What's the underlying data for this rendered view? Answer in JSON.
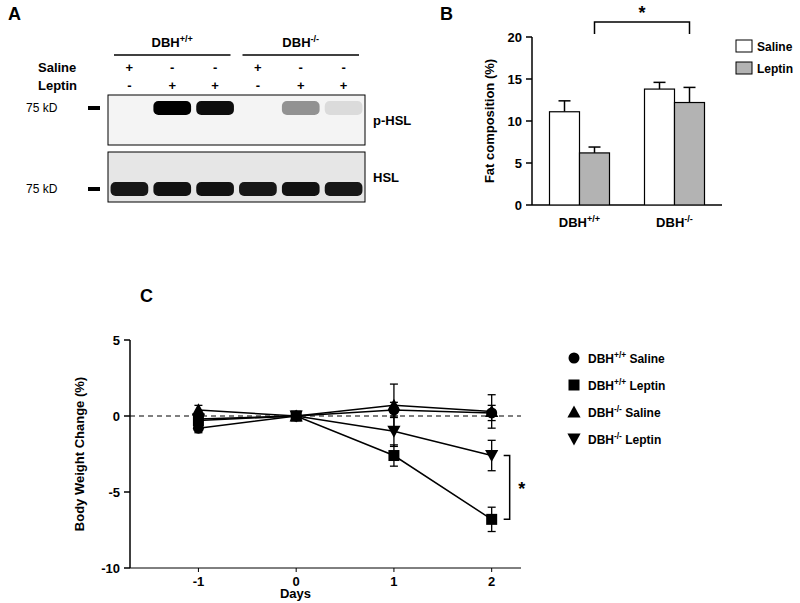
{
  "blot": {
    "panel": "A",
    "groups": [
      {
        "label": "DBH+/+",
        "lanes": 3
      },
      {
        "label": "DBH-/-",
        "lanes": 3
      }
    ],
    "treatments": [
      {
        "label": "Saline",
        "marks": [
          "+",
          "-",
          "-",
          "+",
          "-",
          "-"
        ]
      },
      {
        "label": "Leptin",
        "marks": [
          "-",
          "+",
          "+",
          "-",
          "+",
          "+"
        ]
      }
    ],
    "rows": [
      {
        "label": "p-HSL",
        "marker_label": "75 kD",
        "band_intensity": [
          0,
          1,
          0.95,
          0,
          0.4,
          0.1
        ]
      },
      {
        "label": "HSL",
        "marker_label": "75 kD",
        "band_intensity": [
          0.9,
          0.92,
          0.92,
          0.9,
          0.92,
          0.9
        ]
      }
    ]
  },
  "chart_data": [
    {
      "type": "bar",
      "panel": "B",
      "y_label": "Fat composition (%)",
      "categories": [
        "DBH+/+",
        "DBH-/-"
      ],
      "series": [
        {
          "name": "Saline",
          "color": "#ffffff",
          "values": [
            11.1,
            13.8
          ],
          "errors": [
            1.3,
            0.8
          ]
        },
        {
          "name": "Leptin",
          "color": "#b3b3b3",
          "values": [
            6.2,
            12.2
          ],
          "errors": [
            0.7,
            1.8
          ]
        }
      ],
      "ylim": [
        0,
        20
      ],
      "yticks": [
        0,
        5,
        10,
        15,
        20
      ],
      "legend": "right",
      "annotations": [
        "*"
      ]
    },
    {
      "type": "line",
      "panel": "C",
      "x_label": "Days",
      "y_label": "Body Weight Change (%)",
      "x": [
        -1,
        0,
        1,
        2
      ],
      "xlim": [
        -1.7,
        2.3
      ],
      "xticks": [
        -1,
        0,
        1,
        2
      ],
      "ylim": [
        -10,
        5
      ],
      "yticks": [
        -10,
        -5,
        0,
        5
      ],
      "baseline": 0,
      "series": [
        {
          "name": "DBH+/+ Saline",
          "color": "#000000",
          "marker": "circle",
          "values": [
            -0.8,
            0,
            0.4,
            0.2
          ],
          "errors": [
            0.3,
            0,
            0.5,
            0.5
          ]
        },
        {
          "name": "DBH+/+ Leptin",
          "color": "#000000",
          "marker": "square",
          "values": [
            -0.3,
            0,
            -2.6,
            -6.8
          ],
          "errors": [
            0.3,
            0,
            0.7,
            0.8
          ]
        },
        {
          "name": "DBH-/- Saline",
          "color": "#000000",
          "marker": "triangle-up",
          "values": [
            0.4,
            0,
            0.7,
            0.3
          ],
          "errors": [
            0.3,
            0,
            1.4,
            1.1
          ]
        },
        {
          "name": "DBH-/- Leptin",
          "color": "#000000",
          "marker": "triangle-down",
          "values": [
            -0.2,
            0,
            -1.0,
            -2.6
          ],
          "errors": [
            0.3,
            0,
            1.0,
            1.0
          ]
        }
      ],
      "legend": "right",
      "annotations": [
        "*"
      ]
    }
  ]
}
